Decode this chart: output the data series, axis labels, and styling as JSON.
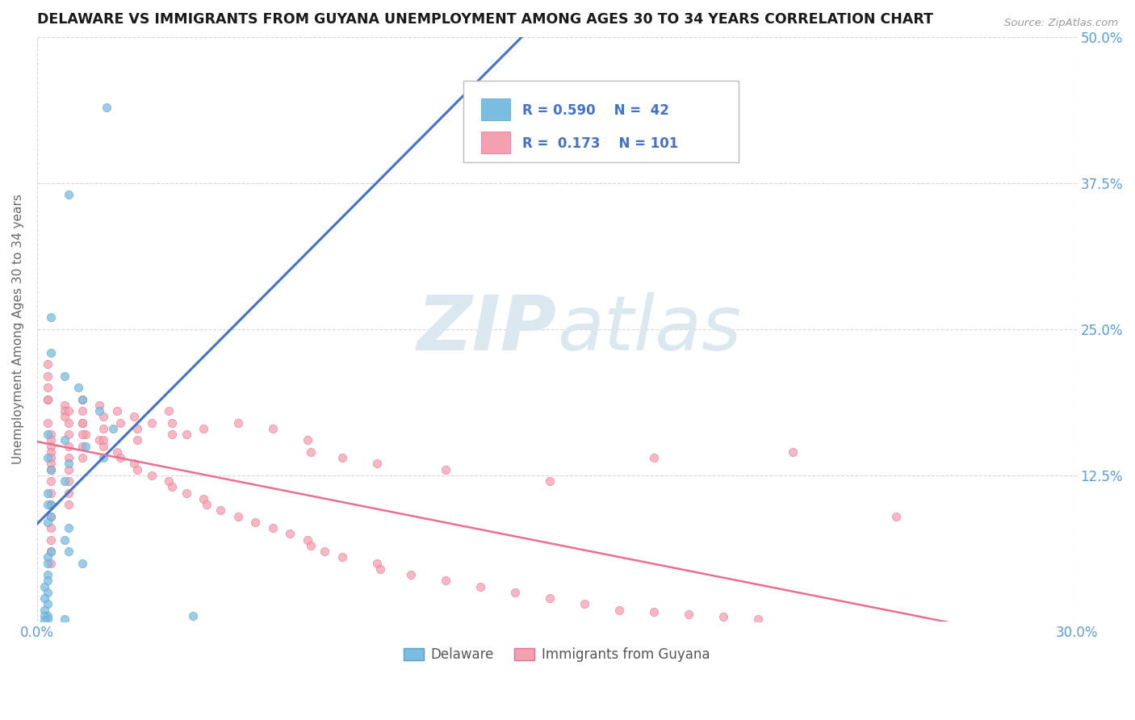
{
  "title": "DELAWARE VS IMMIGRANTS FROM GUYANA UNEMPLOYMENT AMONG AGES 30 TO 34 YEARS CORRELATION CHART",
  "source_text": "Source: ZipAtlas.com",
  "ylabel": "Unemployment Among Ages 30 to 34 years",
  "xlim": [
    0.0,
    0.3
  ],
  "ylim": [
    0.0,
    0.5
  ],
  "delaware_R": 0.59,
  "delaware_N": 42,
  "guyana_R": 0.173,
  "guyana_N": 101,
  "delaware_color": "#7bbde0",
  "delaware_edge": "#5a9ec8",
  "guyana_color": "#f5a0b0",
  "guyana_edge": "#e07090",
  "trend_blue": "#4472c4",
  "trend_pink": "#e87090",
  "watermark_color": "#dce8f0",
  "grid_color": "#cccccc",
  "axis_label_color": "#5b9bd5",
  "title_color": "#1a1a1a",
  "legend_label_color": "#555555",
  "delaware_x": [
    0.02,
    0.009,
    0.004,
    0.004,
    0.008,
    0.012,
    0.013,
    0.018,
    0.022,
    0.003,
    0.008,
    0.014,
    0.019,
    0.003,
    0.009,
    0.004,
    0.008,
    0.003,
    0.004,
    0.003,
    0.004,
    0.003,
    0.009,
    0.008,
    0.009,
    0.004,
    0.003,
    0.003,
    0.013,
    0.003,
    0.003,
    0.002,
    0.003,
    0.002,
    0.003,
    0.002,
    0.045,
    0.003,
    0.002,
    0.003,
    0.008,
    0.002
  ],
  "delaware_y": [
    0.44,
    0.365,
    0.26,
    0.23,
    0.21,
    0.2,
    0.19,
    0.18,
    0.165,
    0.16,
    0.155,
    0.15,
    0.14,
    0.14,
    0.135,
    0.13,
    0.12,
    0.11,
    0.1,
    0.1,
    0.09,
    0.085,
    0.08,
    0.07,
    0.06,
    0.06,
    0.055,
    0.05,
    0.05,
    0.04,
    0.035,
    0.03,
    0.025,
    0.02,
    0.015,
    0.01,
    0.005,
    0.005,
    0.005,
    0.002,
    0.002,
    0.001
  ],
  "guyana_x": [
    0.003,
    0.003,
    0.003,
    0.008,
    0.008,
    0.008,
    0.013,
    0.014,
    0.018,
    0.019,
    0.023,
    0.024,
    0.028,
    0.029,
    0.033,
    0.038,
    0.039,
    0.043,
    0.048,
    0.049,
    0.053,
    0.058,
    0.063,
    0.068,
    0.073,
    0.078,
    0.079,
    0.083,
    0.088,
    0.098,
    0.099,
    0.108,
    0.118,
    0.128,
    0.138,
    0.148,
    0.158,
    0.168,
    0.178,
    0.188,
    0.198,
    0.208,
    0.003,
    0.003,
    0.003,
    0.004,
    0.004,
    0.004,
    0.004,
    0.004,
    0.004,
    0.004,
    0.004,
    0.004,
    0.004,
    0.004,
    0.004,
    0.004,
    0.004,
    0.004,
    0.009,
    0.009,
    0.009,
    0.009,
    0.009,
    0.009,
    0.009,
    0.009,
    0.009,
    0.013,
    0.013,
    0.013,
    0.013,
    0.013,
    0.013,
    0.018,
    0.019,
    0.019,
    0.019,
    0.023,
    0.024,
    0.028,
    0.029,
    0.029,
    0.033,
    0.038,
    0.039,
    0.039,
    0.043,
    0.048,
    0.058,
    0.068,
    0.078,
    0.079,
    0.088,
    0.098,
    0.118,
    0.148,
    0.178,
    0.218,
    0.248
  ],
  "guyana_y": [
    0.22,
    0.2,
    0.19,
    0.185,
    0.18,
    0.175,
    0.17,
    0.16,
    0.155,
    0.15,
    0.145,
    0.14,
    0.135,
    0.13,
    0.125,
    0.12,
    0.115,
    0.11,
    0.105,
    0.1,
    0.095,
    0.09,
    0.085,
    0.08,
    0.075,
    0.07,
    0.065,
    0.06,
    0.055,
    0.05,
    0.045,
    0.04,
    0.035,
    0.03,
    0.025,
    0.02,
    0.015,
    0.01,
    0.008,
    0.006,
    0.004,
    0.002,
    0.21,
    0.19,
    0.17,
    0.16,
    0.155,
    0.15,
    0.145,
    0.14,
    0.135,
    0.13,
    0.12,
    0.11,
    0.1,
    0.09,
    0.08,
    0.07,
    0.06,
    0.05,
    0.18,
    0.17,
    0.16,
    0.15,
    0.14,
    0.13,
    0.12,
    0.11,
    0.1,
    0.19,
    0.18,
    0.17,
    0.16,
    0.15,
    0.14,
    0.185,
    0.175,
    0.165,
    0.155,
    0.18,
    0.17,
    0.175,
    0.165,
    0.155,
    0.17,
    0.18,
    0.17,
    0.16,
    0.16,
    0.165,
    0.17,
    0.165,
    0.155,
    0.145,
    0.14,
    0.135,
    0.13,
    0.12,
    0.14,
    0.145,
    0.09
  ]
}
